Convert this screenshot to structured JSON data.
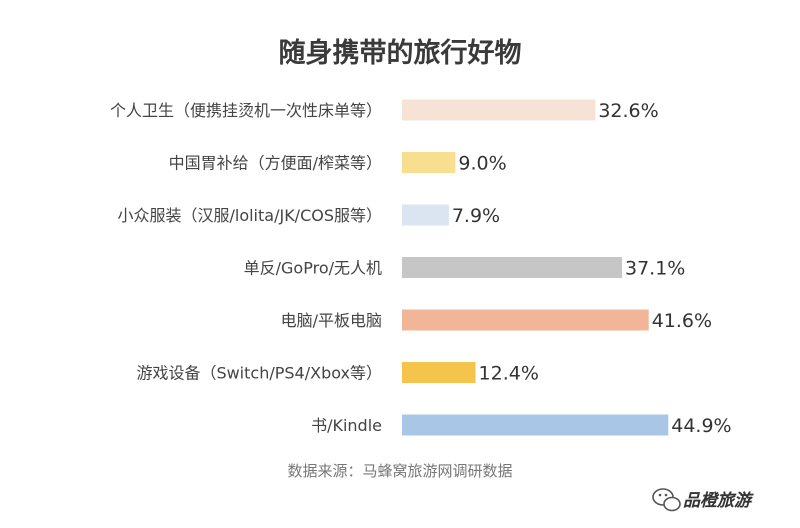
{
  "chart_data": {
    "type": "bar",
    "orientation": "horizontal",
    "title": "随身携带的旅行好物",
    "categories": [
      "个人卫生（便携挂烫机一次性床单等）",
      "中国胃补给（方便面/榨菜等）",
      "小众服装（汉服/lolita/JK/COS服等）",
      "单反/GoPro/无人机",
      "电脑/平板电脑",
      "游戏设备（Switch/PS4/Xbox等）",
      "书/Kindle"
    ],
    "values": [
      32.6,
      9.0,
      7.9,
      37.1,
      41.6,
      12.4,
      44.9
    ],
    "value_labels": [
      "32.6%",
      "9.0%",
      "7.9%",
      "37.1%",
      "41.6%",
      "12.4%",
      "44.9%"
    ],
    "colors": [
      "#f7e3d6",
      "#f7df8f",
      "#dbe4f1",
      "#c6c6c6",
      "#f1b598",
      "#f4c44c",
      "#a9c6e6"
    ],
    "xlim": [
      0,
      50
    ],
    "grid": false,
    "legend": "none"
  },
  "source": "数据来源：马蜂窝旅游网调研数据",
  "watermark": {
    "text": "品橙旅游",
    "icon": "wechat-icon"
  }
}
